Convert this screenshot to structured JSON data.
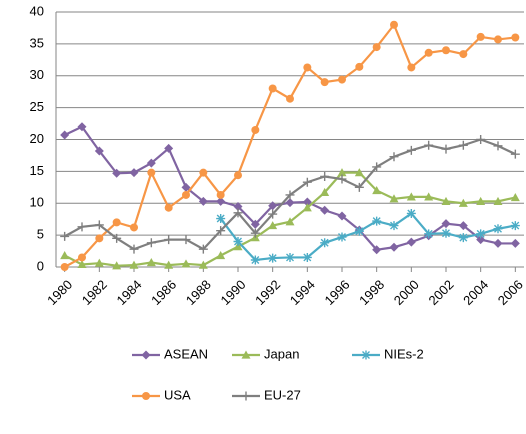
{
  "chart_data": {
    "type": "line",
    "x": [
      1980,
      1981,
      1982,
      1983,
      1984,
      1985,
      1986,
      1987,
      1988,
      1989,
      1990,
      1991,
      1992,
      1993,
      1994,
      1995,
      1996,
      1997,
      1998,
      1999,
      2000,
      2001,
      2002,
      2003,
      2004,
      2005,
      2006
    ],
    "xlim": [
      1979.5,
      2006.5
    ],
    "xticks": [
      1980,
      1982,
      1984,
      1986,
      1988,
      1990,
      1992,
      1994,
      1996,
      1998,
      2000,
      2002,
      2004,
      2006
    ],
    "ylim": [
      0,
      40
    ],
    "yticks": [
      0,
      5,
      10,
      15,
      20,
      25,
      30,
      35,
      40
    ],
    "grid": true,
    "legend": "bottom",
    "series": [
      {
        "name": "ASEAN",
        "color": "#8064a2",
        "marker": "diamond",
        "values": [
          20.7,
          22,
          18.2,
          14.7,
          14.8,
          16.3,
          18.6,
          12.5,
          10.3,
          10.3,
          9.5,
          6.7,
          9.6,
          10.1,
          10.2,
          8.9,
          8.0,
          5.8,
          2.7,
          3.1,
          3.9,
          4.9,
          6.8,
          6.5,
          4.3,
          3.7,
          3.7
        ]
      },
      {
        "name": "Japan",
        "color": "#9bbb59",
        "marker": "triangle",
        "values": [
          1.8,
          0.4,
          0.6,
          0.2,
          0.3,
          0.7,
          0.3,
          0.5,
          0.3,
          1.8,
          3.2,
          4.6,
          6.5,
          7.1,
          9.3,
          11.7,
          14.8,
          14.8,
          12.0,
          10.7,
          11.0,
          11.0,
          10.3,
          10.0,
          10.3,
          10.3,
          10.9
        ]
      },
      {
        "name": "NIEs-2",
        "color": "#4bacc6",
        "marker": "star",
        "values": [
          null,
          null,
          null,
          null,
          null,
          null,
          null,
          null,
          null,
          7.6,
          4.0,
          1.1,
          1.4,
          1.5,
          1.5,
          3.8,
          4.7,
          5.6,
          7.2,
          6.5,
          8.4,
          5.2,
          5.3,
          4.6,
          5.2,
          6.0,
          6.5
        ]
      },
      {
        "name": "USA",
        "color": "#f79646",
        "marker": "circle",
        "values": [
          0,
          1.5,
          4.5,
          7.0,
          6.2,
          14.8,
          9.3,
          11.3,
          14.8,
          11.3,
          14.4,
          21.5,
          28.0,
          26.4,
          31.3,
          29.0,
          29.4,
          31.4,
          34.5,
          38.0,
          31.3,
          33.6,
          34.0,
          33.4,
          36.1,
          35.7,
          36.0
        ]
      },
      {
        "name": "EU-27",
        "color": "#7f7f7f",
        "marker": "plus",
        "values": [
          4.8,
          6.3,
          6.6,
          4.5,
          2.8,
          3.8,
          4.3,
          4.3,
          2.8,
          5.7,
          8.5,
          5.3,
          8.3,
          11.3,
          13.3,
          14.2,
          13.8,
          12.5,
          15.7,
          17.3,
          18.3,
          19.1,
          18.5,
          19.1,
          20.0,
          19.0,
          17.7
        ]
      }
    ]
  }
}
